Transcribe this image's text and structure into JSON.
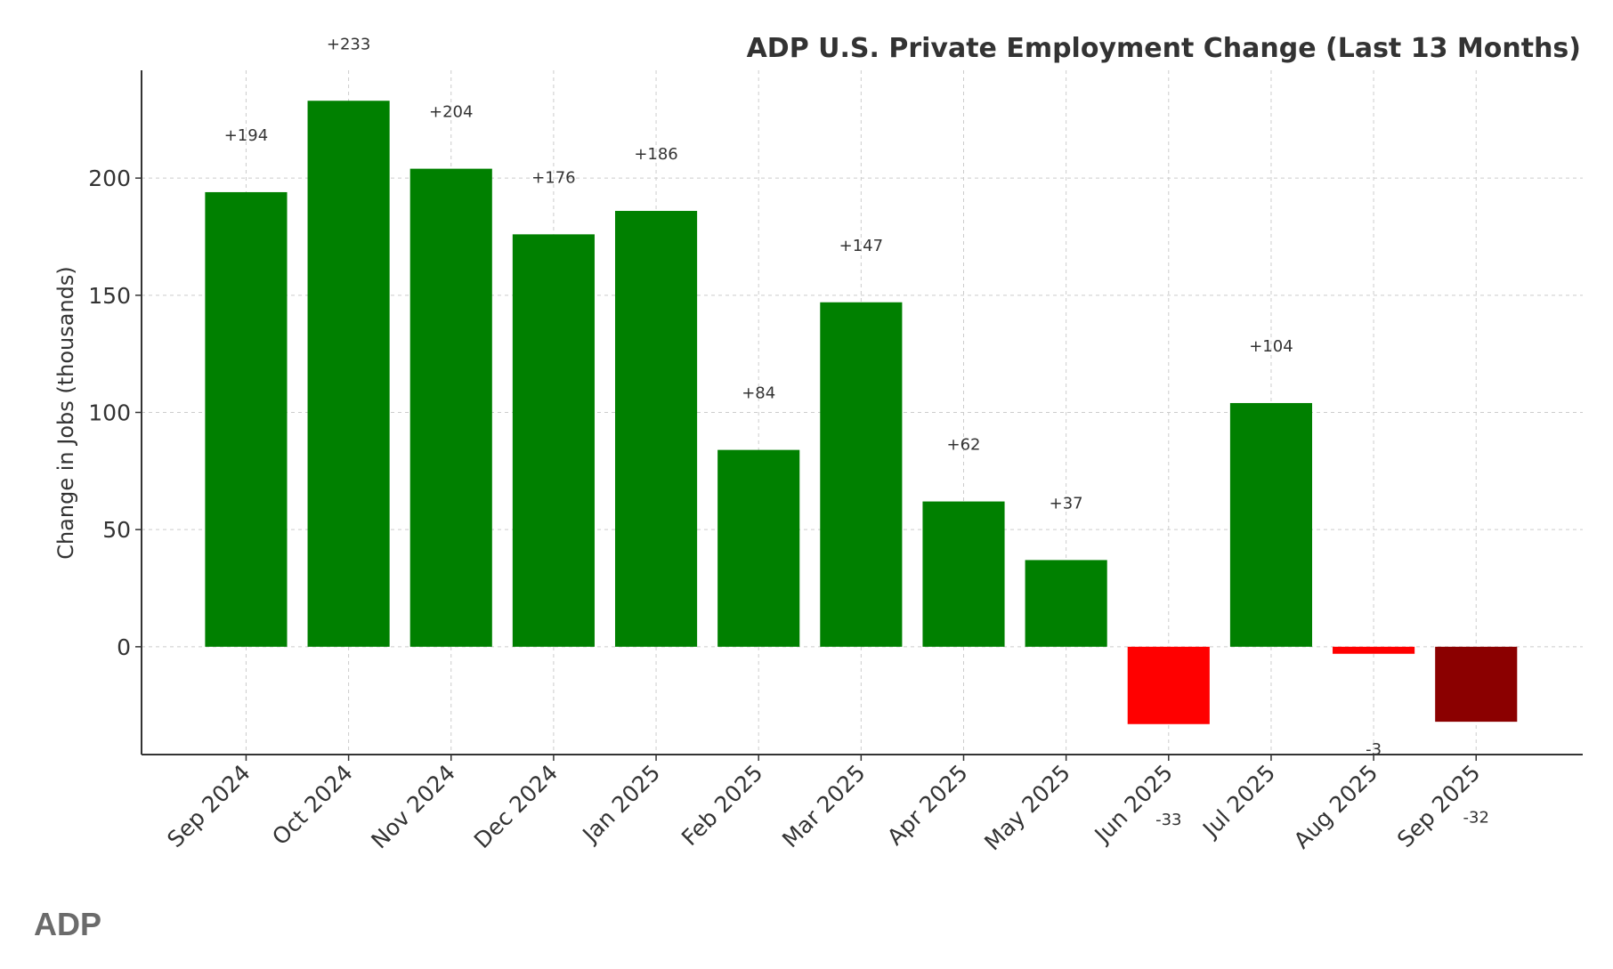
{
  "chart_data": {
    "type": "bar",
    "title": "ADP U.S. Private Employment Change (Last 13 Months)",
    "xlabel": "",
    "ylabel": "Change in Jobs (thousands)",
    "categories": [
      "Sep 2024",
      "Oct 2024",
      "Nov 2024",
      "Dec 2024",
      "Jan 2025",
      "Feb 2025",
      "Mar 2025",
      "Apr 2025",
      "May 2025",
      "Jun 2025",
      "Jul 2025",
      "Aug 2025",
      "Sep 2025"
    ],
    "values": [
      194,
      233,
      204,
      176,
      186,
      84,
      147,
      62,
      37,
      -33,
      104,
      -3,
      -32
    ],
    "data_labels": [
      "+194",
      "+233",
      "+204",
      "+176",
      "+186",
      "+84",
      "+147",
      "+62",
      "+37",
      "-33",
      "+104",
      "-3",
      "-32"
    ],
    "colors": [
      "#008000",
      "#008000",
      "#008000",
      "#008000",
      "#008000",
      "#008000",
      "#008000",
      "#008000",
      "#008000",
      "#ff0000",
      "#008000",
      "#ff0000",
      "#8b0000"
    ],
    "ylim": [
      -46,
      246
    ],
    "yticks": [
      0,
      50,
      100,
      150,
      200
    ],
    "grid": true,
    "legend": "none"
  },
  "footer": {
    "brand": "ADP"
  }
}
